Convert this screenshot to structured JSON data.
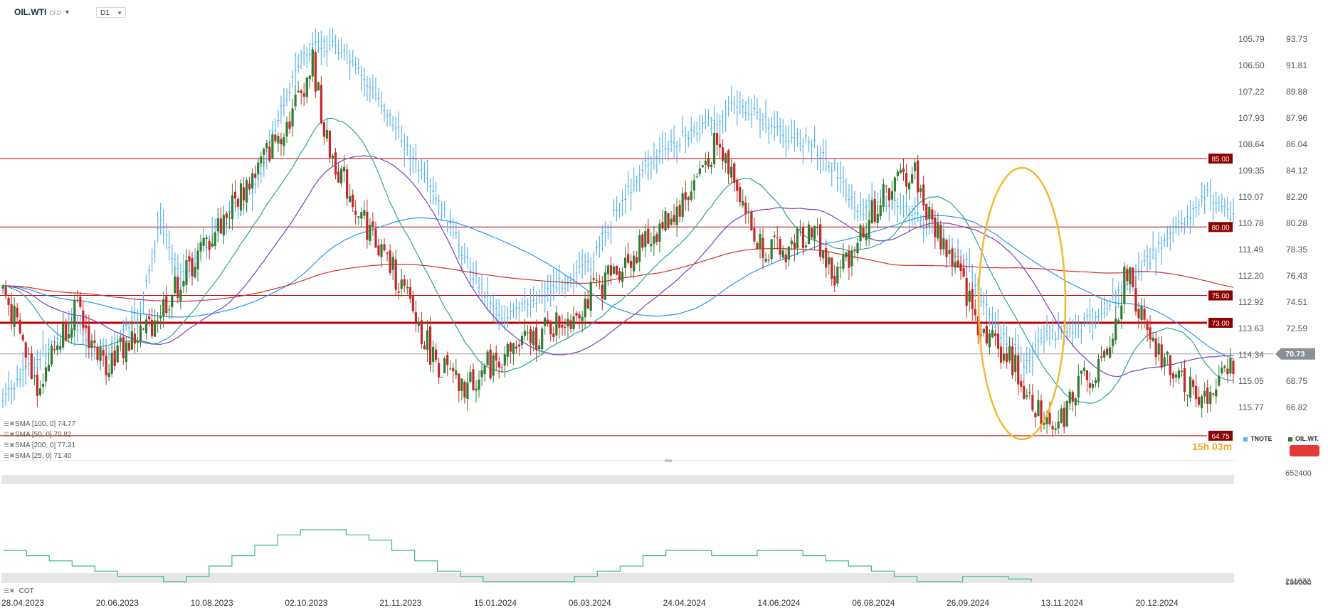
{
  "header": {
    "symbol": "OIL.WTI",
    "symbol_type": "CFD",
    "timeframe": "D1"
  },
  "indicators": [
    {
      "label": "SMA [100, 0] 74.77",
      "color": "#2196f3"
    },
    {
      "label": "SMA [50, 0] 70.82",
      "color": "#7b3fbf"
    },
    {
      "label": "SMA [200, 0] 77.21",
      "color": "#d32f2f"
    },
    {
      "label": "SMA [25, 0] 71.40",
      "color": "#26a69a"
    }
  ],
  "legend": {
    "tnote": "TNOTE",
    "oil": "OIL.WT.",
    "tnote_color": "#5ab4f0",
    "oil_color": "#2e7d32"
  },
  "countdown": "15h 03m",
  "price_now": "70.73",
  "cot_label": "COT",
  "cot_axis": [
    "652400",
    "211632",
    "199000"
  ],
  "colors": {
    "up_candle": "#2e7d32",
    "down_candle": "#c62828",
    "tnote": "#5ab4f0",
    "level_line": "#c00000",
    "ellipse": "#f5b82e",
    "cot_line": "#3dba7a"
  },
  "chart_data": {
    "type": "line",
    "title": "OIL.WTI",
    "x_ticks": [
      "28.04.2023",
      "20.06.2023",
      "10.08.2023",
      "02.10.2023",
      "21.11.2023",
      "15.01.2024",
      "06.03.2024",
      "24.04.2024",
      "14.06.2024",
      "06.08.2024",
      "26.09.2024",
      "13.11.2024",
      "20.12.2024"
    ],
    "y_ticks_oil": [
      "93.73",
      "91.81",
      "89.88",
      "87.96",
      "86.04",
      "84.12",
      "82.20",
      "80.28",
      "78.35",
      "76.43",
      "74.51",
      "72.59",
      "70.73",
      "68.75",
      "66.82"
    ],
    "y_ticks_tnote": [
      "105.79",
      "106.50",
      "107.22",
      "107.93",
      "108.64",
      "109.35",
      "110.07",
      "110.78",
      "111.49",
      "112.20",
      "112.92",
      "113.63",
      "114.34",
      "115.05",
      "115.77"
    ],
    "levels": [
      "85.00",
      "80.00",
      "75.00",
      "73.00",
      "64.75"
    ],
    "series": [
      {
        "name": "OIL.WTI",
        "anchors": [
          [
            0,
            75.5
          ],
          [
            12,
            68.5
          ],
          [
            25,
            74
          ],
          [
            35,
            70
          ],
          [
            50,
            72.5
          ],
          [
            62,
            76
          ],
          [
            75,
            80
          ],
          [
            88,
            84
          ],
          [
            100,
            88
          ],
          [
            108,
            92
          ],
          [
            113,
            86
          ],
          [
            122,
            82
          ],
          [
            138,
            76
          ],
          [
            150,
            70.5
          ],
          [
            160,
            68
          ],
          [
            170,
            70
          ],
          [
            182,
            71.5
          ],
          [
            198,
            73.5
          ],
          [
            210,
            76
          ],
          [
            225,
            79
          ],
          [
            238,
            82
          ],
          [
            248,
            86
          ],
          [
            255,
            84
          ],
          [
            262,
            79
          ],
          [
            272,
            78
          ],
          [
            282,
            80
          ],
          [
            290,
            76
          ],
          [
            300,
            80
          ],
          [
            310,
            83
          ],
          [
            318,
            84
          ],
          [
            322,
            81
          ],
          [
            330,
            78
          ],
          [
            340,
            73
          ],
          [
            352,
            70
          ],
          [
            360,
            67
          ],
          [
            368,
            65.5
          ],
          [
            376,
            69
          ],
          [
            385,
            70
          ],
          [
            392,
            77
          ],
          [
            400,
            71
          ],
          [
            412,
            69
          ],
          [
            420,
            67
          ],
          [
            430,
            70.5
          ]
        ]
      },
      {
        "name": "TNOTE",
        "anchors": [
          [
            0,
            115.6
          ],
          [
            10,
            114.6
          ],
          [
            25,
            113.5
          ],
          [
            35,
            114.4
          ],
          [
            48,
            113.2
          ],
          [
            55,
            110.7
          ],
          [
            62,
            112.2
          ],
          [
            75,
            110.9
          ],
          [
            88,
            109.8
          ],
          [
            98,
            107.5
          ],
          [
            104,
            106.3
          ],
          [
            110,
            106.0
          ],
          [
            116,
            105.9
          ],
          [
            124,
            106.7
          ],
          [
            132,
            107.5
          ],
          [
            142,
            108.9
          ],
          [
            155,
            110.7
          ],
          [
            165,
            112.3
          ],
          [
            175,
            113.4
          ],
          [
            190,
            112.6
          ],
          [
            205,
            111.9
          ],
          [
            214,
            110.4
          ],
          [
            224,
            109.2
          ],
          [
            236,
            108.5
          ],
          [
            248,
            108.0
          ],
          [
            255,
            107.6
          ],
          [
            264,
            107.9
          ],
          [
            272,
            108.4
          ],
          [
            282,
            108.6
          ],
          [
            290,
            109.3
          ],
          [
            298,
            110.5
          ],
          [
            306,
            110.1
          ],
          [
            316,
            110.4
          ],
          [
            326,
            111.2
          ],
          [
            336,
            111.9
          ],
          [
            346,
            113.6
          ],
          [
            356,
            114.5
          ],
          [
            365,
            113.8
          ],
          [
            373,
            113.7
          ],
          [
            382,
            113.2
          ],
          [
            390,
            112.6
          ],
          [
            396,
            112.1
          ],
          [
            404,
            111.4
          ],
          [
            412,
            110.7
          ],
          [
            420,
            110.0
          ],
          [
            428,
            110.5
          ]
        ]
      }
    ],
    "cot_series": [
      0.6,
      0.5,
      0.4,
      0.3,
      0.2,
      0.1,
      0.1,
      0.0,
      0.1,
      0.3,
      0.5,
      0.7,
      0.9,
      1.0,
      1.0,
      0.9,
      0.8,
      0.6,
      0.4,
      0.2,
      0.1,
      0.0,
      0.0,
      0.0,
      0.0,
      0.1,
      0.2,
      0.3,
      0.5,
      0.6,
      0.6,
      0.5,
      0.5,
      0.6,
      0.6,
      0.5,
      0.4,
      0.3,
      0.2,
      0.1,
      0.0,
      0.0,
      0.1,
      0.1,
      0.05,
      0.0
    ],
    "y_ticks_cot": [
      "652400",
      "211632",
      "199000"
    ]
  }
}
